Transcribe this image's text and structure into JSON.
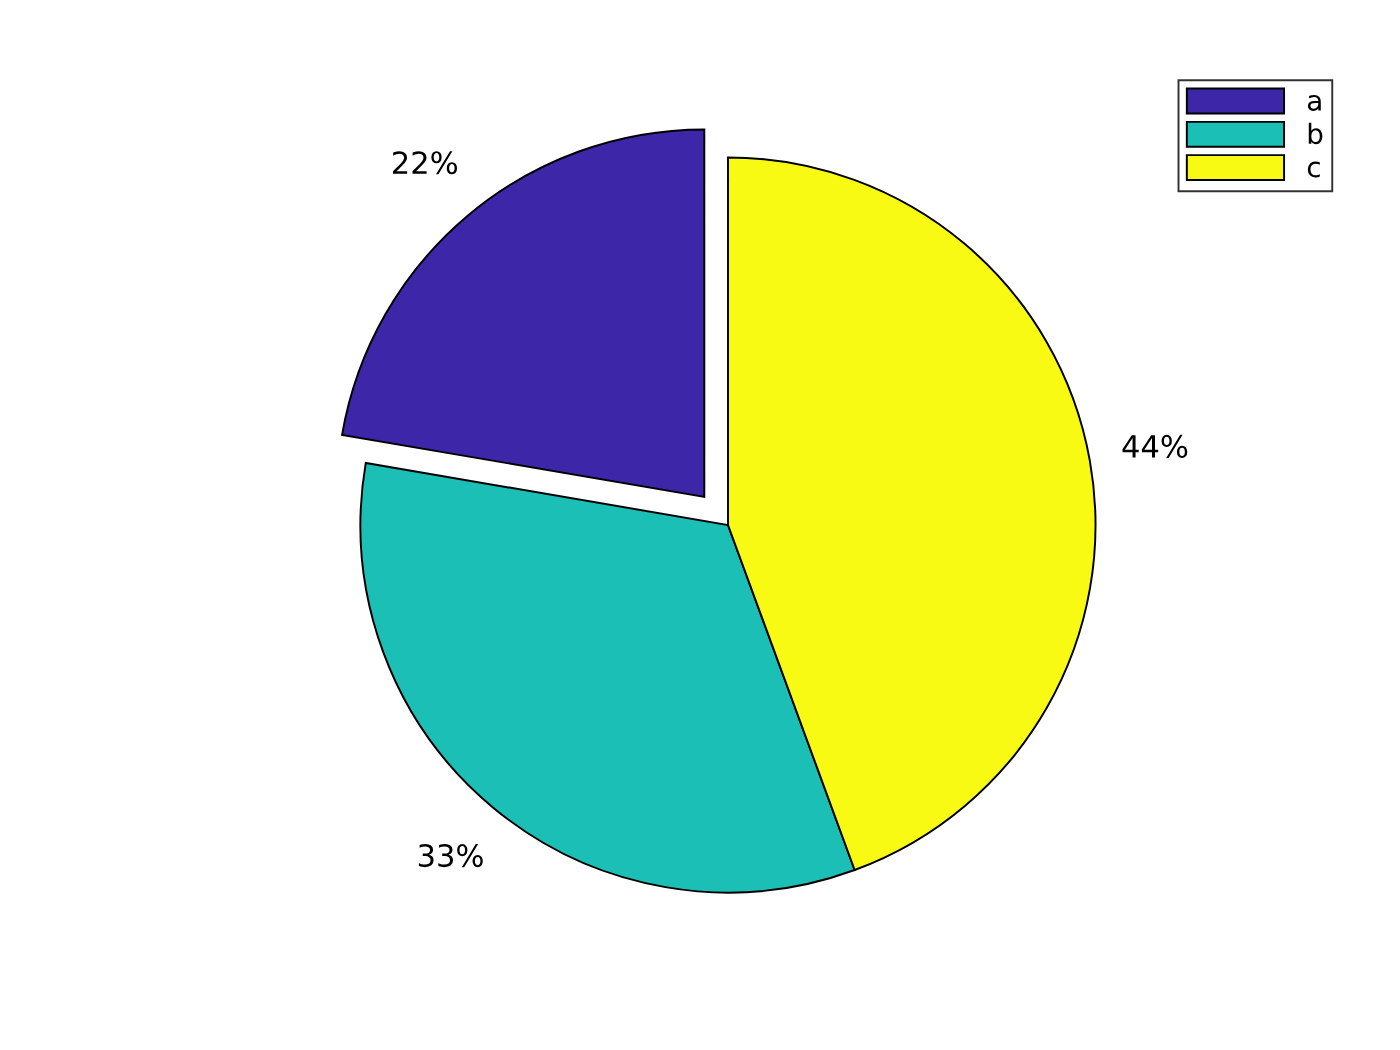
{
  "chart_data": {
    "type": "pie",
    "categories": [
      "a",
      "b",
      "c"
    ],
    "values": [
      22.3,
      33.3,
      44.4
    ],
    "value_labels": [
      "22%",
      "33%",
      "44%"
    ],
    "colors": [
      "#3e26a8",
      "#1bbfb6",
      "#f9fa14"
    ],
    "legend": "top right"
  }
}
